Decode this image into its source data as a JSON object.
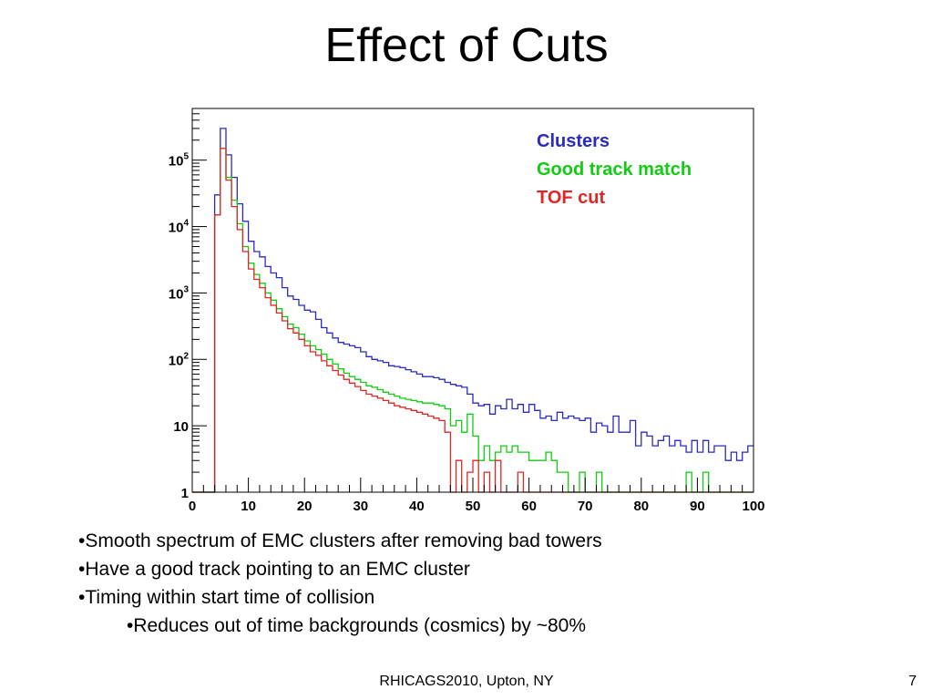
{
  "slide": {
    "title": "Effect of Cuts",
    "bullets": [
      "•Smooth spectrum of EMC clusters after removing bad towers",
      "•Have a good track pointing to an EMC cluster",
      "•Timing within start time of collision"
    ],
    "sub_bullets": [
      "•Reduces out of time backgrounds (cosmics) by ~80%"
    ],
    "footer": "RHICAGS2010, Upton, NY",
    "page_number": "7"
  },
  "chart_data": {
    "type": "line",
    "title": "",
    "xlabel": "",
    "ylabel": "",
    "xlim": [
      0,
      100
    ],
    "ylim": [
      1,
      600000
    ],
    "yscale": "log",
    "x_ticks": [
      "0",
      "10",
      "20",
      "30",
      "40",
      "50",
      "60",
      "70",
      "80",
      "90",
      "100"
    ],
    "y_ticks": [
      {
        "value": 1,
        "label": "1"
      },
      {
        "value": 10,
        "label": "10"
      },
      {
        "value": 100,
        "label": "10",
        "exp": "2"
      },
      {
        "value": 1000,
        "label": "10",
        "exp": "3"
      },
      {
        "value": 10000,
        "label": "10",
        "exp": "4"
      },
      {
        "value": 100000,
        "label": "10",
        "exp": "5"
      }
    ],
    "legend_position": "top-right",
    "grid": false,
    "bin_width": 1,
    "series": [
      {
        "name": "Clusters",
        "color": "#2b2bbf",
        "values": [
          1,
          1,
          1,
          1,
          30000,
          300000,
          120000,
          55000,
          22000,
          12000,
          6000,
          4200,
          3500,
          2500,
          2000,
          1700,
          1200,
          900,
          800,
          650,
          550,
          520,
          400,
          300,
          250,
          210,
          180,
          170,
          160,
          150,
          130,
          110,
          100,
          95,
          90,
          80,
          78,
          75,
          70,
          65,
          60,
          55,
          55,
          53,
          50,
          45,
          42,
          40,
          38,
          30,
          22,
          20,
          21,
          15,
          20,
          18,
          25,
          18,
          21,
          16,
          21,
          17,
          13,
          14,
          12,
          16,
          13,
          14,
          13,
          12,
          13,
          8,
          11,
          10,
          8,
          14,
          8,
          8,
          12,
          5,
          8,
          7,
          5,
          6,
          7,
          5,
          6,
          5,
          4,
          6,
          4,
          6,
          4,
          5,
          5,
          3,
          4,
          3,
          4,
          5
        ]
      },
      {
        "name": "Good track match",
        "color": "#11cc11",
        "values": [
          1,
          1,
          1,
          1,
          15000,
          150000,
          55000,
          25000,
          11000,
          5000,
          2800,
          1900,
          1400,
          1000,
          780,
          580,
          440,
          340,
          300,
          240,
          190,
          160,
          140,
          120,
          100,
          85,
          72,
          62,
          55,
          50,
          45,
          40,
          38,
          35,
          32,
          30,
          28,
          26,
          25,
          24,
          23,
          22,
          22,
          21,
          20,
          18,
          10,
          12,
          8,
          15,
          7,
          3,
          5,
          3,
          4,
          5,
          4,
          5,
          4,
          4,
          3,
          3,
          3,
          4,
          3,
          2,
          2,
          1,
          1,
          2,
          1,
          1,
          2,
          1,
          1,
          1,
          1,
          1,
          1,
          1,
          1,
          1,
          1,
          1,
          1,
          1,
          1,
          1,
          2,
          1,
          1,
          2,
          1,
          1,
          1,
          1,
          1,
          1,
          1,
          1
        ]
      },
      {
        "name": "TOF cut",
        "color": "#e02525",
        "values": [
          1,
          1,
          1,
          1,
          15000,
          150000,
          50000,
          20000,
          9000,
          4200,
          2300,
          1600,
          1200,
          850,
          650,
          500,
          380,
          290,
          250,
          200,
          160,
          130,
          115,
          95,
          80,
          68,
          58,
          50,
          44,
          39,
          34,
          30,
          28,
          26,
          24,
          22,
          20,
          19,
          18,
          17,
          16,
          15,
          14,
          13,
          12,
          8,
          1,
          3,
          1,
          2,
          3,
          1,
          2,
          1,
          3,
          1,
          1,
          1,
          2,
          1,
          1,
          1,
          1,
          1,
          1,
          1,
          1,
          1,
          1,
          1,
          1,
          1,
          1,
          1,
          1,
          1,
          1,
          1,
          1,
          1,
          1,
          1,
          1,
          1,
          1,
          1,
          1,
          1,
          1,
          1,
          1,
          1,
          1,
          1,
          1,
          1,
          1,
          1,
          1,
          1
        ]
      }
    ]
  }
}
